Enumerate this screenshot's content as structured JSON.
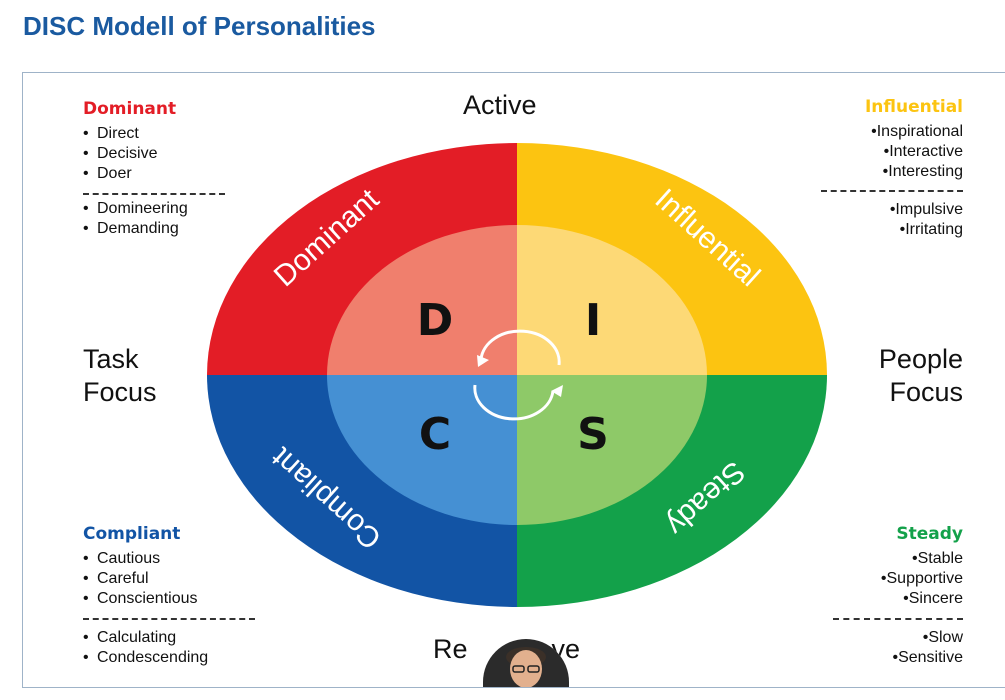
{
  "page": {
    "title": "DISC Modell of Personalities"
  },
  "axes": {
    "top": "Active",
    "bottom": "Re",
    "bottom_end": "ve",
    "left_line1": "Task",
    "left_line2": "Focus",
    "right_line1": "People",
    "right_line2": "Focus"
  },
  "wheel": {
    "letters": {
      "d": "D",
      "i": "I",
      "c": "C",
      "s": "S"
    },
    "arc_labels": {
      "dominant": "Dominant",
      "influential": "Influential",
      "compliant": "Compliant",
      "steady": "Steady"
    },
    "colors": {
      "dominant": "#e31d26",
      "dominant_inner": "#f07f6d",
      "influential": "#fcc411",
      "influential_inner": "#fdd976",
      "compliant": "#1254a5",
      "compliant_inner": "#4590d3",
      "steady": "#13a14a",
      "steady_inner": "#8ec968"
    }
  },
  "quadrants": {
    "dominant": {
      "heading": "Dominant",
      "color": "#e31d26",
      "strengths": [
        "Direct",
        "Decisive",
        "Doer"
      ],
      "weaknesses": [
        "Domineering",
        "Demanding"
      ]
    },
    "influential": {
      "heading": "Influential",
      "color": "#fcc411",
      "strengths": [
        "Inspirational",
        "Interactive",
        "Interesting"
      ],
      "weaknesses": [
        "Impulsive",
        "Irritating"
      ]
    },
    "compliant": {
      "heading": "Compliant",
      "color": "#1254a5",
      "strengths": [
        "Cautious",
        "Careful",
        "Conscientious"
      ],
      "weaknesses": [
        "Calculating",
        "Condescending"
      ]
    },
    "steady": {
      "heading": "Steady",
      "color": "#13a14a",
      "strengths": [
        "Stable",
        "Supportive",
        "Sincere"
      ],
      "weaknesses": [
        "Slow",
        "Sensitive"
      ]
    }
  }
}
